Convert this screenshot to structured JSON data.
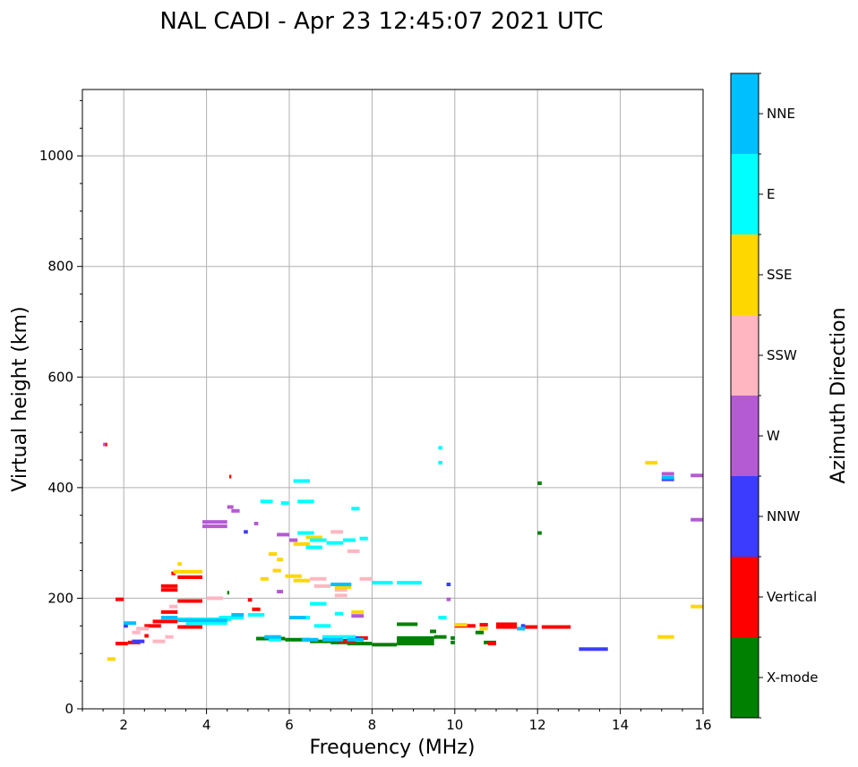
{
  "chart_data": {
    "type": "scatter",
    "title": "NAL CADI - Apr 23 12:45:07 2021 UTC",
    "xlabel": "Frequency (MHz)",
    "ylabel": "Virtual height (km)",
    "xlim": [
      1,
      16
    ],
    "ylim": [
      0,
      1120
    ],
    "grid": true,
    "x_ticks": [
      2,
      4,
      6,
      8,
      10,
      12,
      14,
      16
    ],
    "x_tick_labels": [
      "2",
      "4",
      "6",
      "8",
      "10",
      "12",
      "14",
      "16"
    ],
    "y_ticks": [
      0,
      200,
      400,
      600,
      800,
      1000
    ],
    "y_tick_labels": [
      "0",
      "200",
      "400",
      "600",
      "800",
      "1000"
    ],
    "colorbar": {
      "title": "Azimuth Direction",
      "position": "right",
      "categories": [
        {
          "name": "X-mode",
          "color": "#008000"
        },
        {
          "name": "Vertical",
          "color": "#ff0000"
        },
        {
          "name": "NNW",
          "color": "#3c3cff"
        },
        {
          "name": "W",
          "color": "#b45ad2"
        },
        {
          "name": "SSW",
          "color": "#ffb6c1"
        },
        {
          "name": "SSE",
          "color": "#ffd700"
        },
        {
          "name": "E",
          "color": "#00ffff"
        },
        {
          "name": "NNE",
          "color": "#00bfff"
        }
      ]
    },
    "series": [
      {
        "name": "X-mode",
        "segments": [
          [
            5.2,
            5.9,
            127
          ],
          [
            5.9,
            6.5,
            125
          ],
          [
            6.5,
            7.0,
            122
          ],
          [
            7.0,
            7.4,
            120
          ],
          [
            7.4,
            8.0,
            118
          ],
          [
            8.0,
            8.6,
            116
          ],
          [
            8.6,
            9.5,
            118
          ],
          [
            8.6,
            9.5,
            124
          ],
          [
            8.6,
            9.5,
            128
          ],
          [
            9.5,
            9.8,
            130
          ],
          [
            9.9,
            10.0,
            120
          ],
          [
            9.9,
            10.0,
            128
          ],
          [
            8.6,
            9.1,
            153
          ],
          [
            9.4,
            9.55,
            140
          ],
          [
            10.5,
            10.7,
            138
          ],
          [
            10.7,
            11.0,
            120
          ],
          [
            12.0,
            12.1,
            408
          ],
          [
            12.0,
            12.1,
            318
          ],
          [
            4.5,
            4.55,
            210
          ]
        ]
      },
      {
        "name": "Vertical",
        "segments": [
          [
            1.8,
            2.0,
            198
          ],
          [
            1.8,
            2.1,
            118
          ],
          [
            2.1,
            2.4,
            120
          ],
          [
            2.5,
            2.6,
            132
          ],
          [
            2.5,
            2.9,
            150
          ],
          [
            2.7,
            3.3,
            158
          ],
          [
            2.9,
            3.3,
            175
          ],
          [
            2.9,
            3.3,
            215
          ],
          [
            2.9,
            3.3,
            222
          ],
          [
            3.3,
            3.9,
            238
          ],
          [
            3.3,
            3.9,
            195
          ],
          [
            3.3,
            3.9,
            148
          ],
          [
            3.15,
            3.25,
            245
          ],
          [
            4.55,
            4.6,
            420
          ],
          [
            5.0,
            5.1,
            197
          ],
          [
            5.1,
            5.3,
            180
          ],
          [
            7.2,
            7.6,
            123
          ],
          [
            7.6,
            7.9,
            128
          ],
          [
            10.0,
            10.5,
            150
          ],
          [
            10.6,
            10.8,
            152
          ],
          [
            10.8,
            11.0,
            118
          ],
          [
            11.0,
            11.5,
            148
          ],
          [
            11.0,
            11.5,
            153
          ],
          [
            11.7,
            12.0,
            148
          ],
          [
            12.1,
            12.8,
            148
          ],
          [
            1.55,
            1.6,
            478
          ]
        ]
      },
      {
        "name": "NNW",
        "segments": [
          [
            13.0,
            13.7,
            108
          ],
          [
            2.0,
            2.1,
            150
          ],
          [
            2.2,
            2.5,
            122
          ],
          [
            7.0,
            7.3,
            125
          ],
          [
            7.4,
            7.7,
            128
          ],
          [
            9.8,
            9.9,
            225
          ],
          [
            11.6,
            11.7,
            150
          ],
          [
            4.9,
            5.0,
            320
          ],
          [
            15.0,
            15.3,
            415
          ]
        ]
      },
      {
        "name": "W",
        "segments": [
          [
            3.9,
            4.5,
            338
          ],
          [
            3.9,
            4.5,
            330
          ],
          [
            4.5,
            4.65,
            365
          ],
          [
            4.6,
            4.8,
            358
          ],
          [
            5.15,
            5.25,
            335
          ],
          [
            5.7,
            6.0,
            315
          ],
          [
            6.0,
            6.2,
            305
          ],
          [
            15.0,
            15.3,
            425
          ],
          [
            15.7,
            16.0,
            422
          ],
          [
            15.7,
            16.0,
            342
          ],
          [
            1.5,
            1.55,
            478
          ],
          [
            7.5,
            7.8,
            168
          ],
          [
            9.8,
            9.9,
            198
          ],
          [
            5.7,
            5.85,
            212
          ]
        ]
      },
      {
        "name": "SSW",
        "segments": [
          [
            6.5,
            6.9,
            235
          ],
          [
            6.6,
            7.0,
            222
          ],
          [
            7.0,
            7.3,
            320
          ],
          [
            7.1,
            7.4,
            215
          ],
          [
            7.1,
            7.4,
            205
          ],
          [
            2.7,
            3.0,
            122
          ],
          [
            3.0,
            3.2,
            130
          ],
          [
            2.3,
            2.6,
            145
          ],
          [
            3.1,
            3.3,
            185
          ],
          [
            4.0,
            4.4,
            200
          ],
          [
            7.4,
            7.7,
            285
          ],
          [
            7.7,
            8.0,
            235
          ],
          [
            2.2,
            2.4,
            138
          ]
        ]
      },
      {
        "name": "SSE",
        "segments": [
          [
            3.2,
            3.9,
            248
          ],
          [
            3.3,
            3.4,
            262
          ],
          [
            5.5,
            5.7,
            280
          ],
          [
            5.7,
            5.85,
            270
          ],
          [
            6.1,
            6.5,
            298
          ],
          [
            6.4,
            6.8,
            310
          ],
          [
            6.1,
            6.5,
            232
          ],
          [
            7.1,
            7.5,
            220
          ],
          [
            7.5,
            7.8,
            175
          ],
          [
            10.0,
            10.3,
            152
          ],
          [
            14.6,
            14.9,
            445
          ],
          [
            14.9,
            15.3,
            130
          ],
          [
            15.7,
            16.0,
            185
          ],
          [
            1.6,
            1.8,
            90
          ],
          [
            5.6,
            5.8,
            250
          ],
          [
            5.3,
            5.5,
            235
          ],
          [
            10.6,
            10.8,
            145
          ],
          [
            5.9,
            6.3,
            240
          ]
        ]
      },
      {
        "name": "E",
        "segments": [
          [
            3.3,
            4.6,
            162
          ],
          [
            3.5,
            4.5,
            155
          ],
          [
            4.3,
            4.9,
            165
          ],
          [
            5.0,
            5.4,
            170
          ],
          [
            5.5,
            5.8,
            125
          ],
          [
            6.0,
            6.5,
            165
          ],
          [
            6.2,
            6.6,
            375
          ],
          [
            6.2,
            6.6,
            318
          ],
          [
            6.5,
            6.9,
            305
          ],
          [
            6.4,
            6.8,
            292
          ],
          [
            5.8,
            6.0,
            372
          ],
          [
            6.9,
            7.3,
            300
          ],
          [
            7.3,
            7.6,
            305
          ],
          [
            7.7,
            7.9,
            308
          ],
          [
            8.0,
            8.5,
            228
          ],
          [
            8.6,
            9.2,
            228
          ],
          [
            6.5,
            6.9,
            190
          ],
          [
            6.8,
            7.2,
            130
          ],
          [
            7.2,
            7.6,
            130
          ],
          [
            7.5,
            7.7,
            362
          ],
          [
            9.6,
            9.8,
            165
          ],
          [
            9.6,
            9.7,
            472
          ],
          [
            9.6,
            9.7,
            445
          ],
          [
            6.1,
            6.5,
            412
          ],
          [
            5.3,
            5.6,
            375
          ],
          [
            6.6,
            7.0,
            150
          ],
          [
            7.1,
            7.3,
            172
          ]
        ]
      },
      {
        "name": "NNE",
        "segments": [
          [
            3.3,
            4.5,
            160
          ],
          [
            2.9,
            3.3,
            165
          ],
          [
            2.0,
            2.3,
            155
          ],
          [
            5.4,
            5.8,
            130
          ],
          [
            6.3,
            6.7,
            125
          ],
          [
            6.8,
            7.3,
            125
          ],
          [
            7.4,
            7.8,
            125
          ],
          [
            15.0,
            15.3,
            418
          ],
          [
            11.5,
            11.7,
            145
          ],
          [
            4.6,
            4.9,
            170
          ],
          [
            6.0,
            6.4,
            165
          ],
          [
            7.0,
            7.5,
            225
          ]
        ]
      }
    ]
  }
}
